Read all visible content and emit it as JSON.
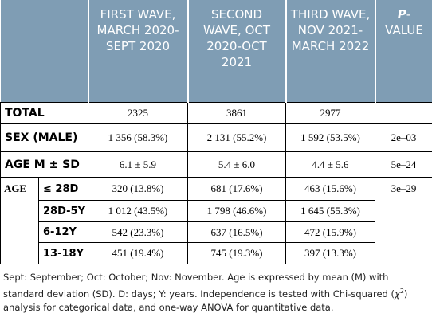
{
  "table": {
    "header": [
      "FIRST WAVE, MARCH 2020-SEPT 2020",
      "SECOND WAVE, OCT 2020-OCT 2021",
      "THIRD WAVE, NOV 2021-MARCH 2022"
    ],
    "p_header": {
      "italic": "P",
      "rest": "-VALUE"
    },
    "rows": [
      {
        "label": "TOTAL",
        "cells": [
          "2325",
          "3861",
          "2977"
        ],
        "p": ""
      },
      {
        "label": "SEX (MALE)",
        "cells": [
          "1 356 (58.3%)",
          "2 131 (55.2%)",
          "1 592 (53.5%)"
        ],
        "p": "2e–03"
      },
      {
        "label": "AGE M ± SD",
        "cells": [
          "6.1 ± 5.9",
          "5.4 ± 6.0",
          "4.4 ± 5.6"
        ],
        "p": "5e–24"
      }
    ],
    "age_group": {
      "label": "AGE",
      "p": "3e–29",
      "rows": [
        {
          "label": "≤ 28D",
          "cells": [
            "320 (13.8%)",
            "681 (17.6%)",
            "463 (15.6%)"
          ]
        },
        {
          "label": "28D-5Y",
          "cells": [
            "1 012 (43.5%)",
            "1 798 (46.6%)",
            "1 645 (55.3%)"
          ]
        },
        {
          "label": "6-12Y",
          "cells": [
            "542 (23.3%)",
            "637 (16.5%)",
            "472 (15.9%)"
          ]
        },
        {
          "label": "13-18Y",
          "cells": [
            "451 (19.4%)",
            "745 (19.3%)",
            "397 (13.3%)"
          ]
        }
      ]
    }
  },
  "footnote": {
    "before": "Sept: September; Oct: October; Nov: November. Age is expressed by mean (M) with standard deviation (SD). D: days; Y: years. Independence is tested with Chi-squared (",
    "symbol": "χ",
    "sup": "2",
    "after": ") analysis for categorical data, and one-way ANOVA for quantitative data."
  }
}
